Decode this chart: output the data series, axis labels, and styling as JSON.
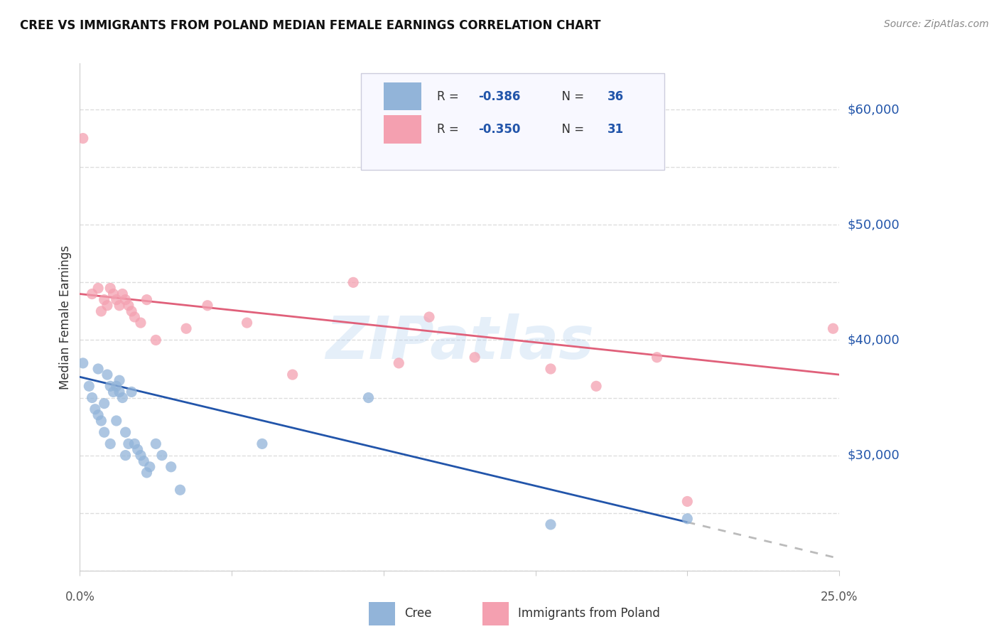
{
  "title": "CREE VS IMMIGRANTS FROM POLAND MEDIAN FEMALE EARNINGS CORRELATION CHART",
  "source": "Source: ZipAtlas.com",
  "ylabel": "Median Female Earnings",
  "y_ticks": [
    30000,
    40000,
    50000,
    60000
  ],
  "y_tick_labels": [
    "$30,000",
    "$40,000",
    "$50,000",
    "$60,000"
  ],
  "x_tick_labels": [
    "0.0%",
    "25.0%"
  ],
  "x_min": 0.0,
  "x_max": 0.25,
  "y_min": 20000,
  "y_max": 64000,
  "cree_R": "-0.386",
  "cree_N": "36",
  "poland_R": "-0.350",
  "poland_N": "31",
  "cree_color": "#92B4D9",
  "poland_color": "#F4A0B0",
  "cree_line_color": "#2255AA",
  "poland_line_color": "#E0607A",
  "dashed_line_color": "#BBBBBB",
  "watermark": "ZIPatlas",
  "background_color": "#FFFFFF",
  "grid_color": "#DDDDDD",
  "legend_box_color": "#F8F8FF",
  "legend_border_color": "#CCCCDD",
  "cree_scatter_x": [
    0.001,
    0.003,
    0.004,
    0.005,
    0.006,
    0.006,
    0.007,
    0.008,
    0.008,
    0.009,
    0.01,
    0.01,
    0.011,
    0.012,
    0.012,
    0.013,
    0.013,
    0.014,
    0.015,
    0.015,
    0.016,
    0.017,
    0.018,
    0.019,
    0.02,
    0.021,
    0.022,
    0.023,
    0.025,
    0.027,
    0.03,
    0.033,
    0.06,
    0.095,
    0.155,
    0.2
  ],
  "cree_scatter_y": [
    38000,
    36000,
    35000,
    34000,
    37500,
    33500,
    33000,
    34500,
    32000,
    37000,
    31000,
    36000,
    35500,
    36000,
    33000,
    35500,
    36500,
    35000,
    32000,
    30000,
    31000,
    35500,
    31000,
    30500,
    30000,
    29500,
    28500,
    29000,
    31000,
    30000,
    29000,
    27000,
    31000,
    35000,
    24000,
    24500
  ],
  "poland_scatter_x": [
    0.001,
    0.004,
    0.006,
    0.007,
    0.008,
    0.009,
    0.01,
    0.011,
    0.012,
    0.013,
    0.014,
    0.015,
    0.016,
    0.017,
    0.018,
    0.02,
    0.022,
    0.025,
    0.035,
    0.042,
    0.055,
    0.07,
    0.09,
    0.105,
    0.115,
    0.13,
    0.155,
    0.17,
    0.19,
    0.2,
    0.248
  ],
  "poland_scatter_y": [
    57500,
    44000,
    44500,
    42500,
    43500,
    43000,
    44500,
    44000,
    43500,
    43000,
    44000,
    43500,
    43000,
    42500,
    42000,
    41500,
    43500,
    40000,
    41000,
    43000,
    41500,
    37000,
    45000,
    38000,
    42000,
    38500,
    37500,
    36000,
    38500,
    26000,
    41000
  ],
  "cree_line_x0": 0.0,
  "cree_line_y0": 36800,
  "cree_line_x1": 0.2,
  "cree_line_y1": 24200,
  "cree_line_solid_end": 0.2,
  "cree_line_dash_start": 0.2,
  "cree_line_dash_end": 0.25,
  "poland_line_x0": 0.0,
  "poland_line_y0": 44000,
  "poland_line_x1": 0.25,
  "poland_line_y1": 37000
}
